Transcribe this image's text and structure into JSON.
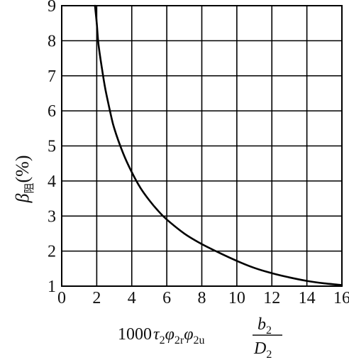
{
  "chart_data": {
    "type": "line",
    "xlim": [
      0,
      16
    ],
    "ylim": [
      1,
      9
    ],
    "x_ticks": [
      "0",
      "2",
      "4",
      "6",
      "8",
      "10",
      "12",
      "14",
      "16"
    ],
    "y_ticks": [
      "1",
      "2",
      "3",
      "4",
      "5",
      "6",
      "7",
      "8",
      "9"
    ],
    "grid": true,
    "xlabel": {
      "prefix": "1000",
      "tau": "τ",
      "tau_sub": "2",
      "phi1": "φ",
      "phi1_sub": "2r",
      "phi2": "φ",
      "phi2_sub": "2u",
      "frac_num": "b",
      "frac_num_sub": "2",
      "frac_den": "D",
      "frac_den_sub": "2"
    },
    "ylabel": {
      "symbol": "β",
      "subscript": "阻",
      "unit": "(%)"
    },
    "series": [
      {
        "color": "#000000",
        "x": [
          1.9,
          2.0,
          2.1,
          2.3,
          2.5,
          2.8,
          3.0,
          3.5,
          4.0,
          4.5,
          5.0,
          5.5,
          6.0,
          7.0,
          8.0,
          9.0,
          10.0,
          11.0,
          12.0,
          13.0,
          14.0,
          15.0,
          16.0
        ],
        "y": [
          9.0,
          8.5,
          7.9,
          7.2,
          6.6,
          5.9,
          5.5,
          4.8,
          4.25,
          3.8,
          3.45,
          3.15,
          2.9,
          2.5,
          2.2,
          1.95,
          1.72,
          1.52,
          1.37,
          1.25,
          1.15,
          1.08,
          1.03
        ]
      }
    ]
  }
}
